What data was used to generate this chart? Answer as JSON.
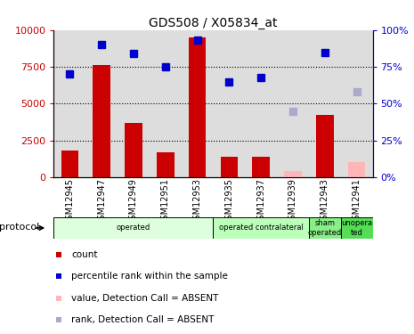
{
  "title": "GDS508 / X05834_at",
  "samples": [
    "GSM12945",
    "GSM12947",
    "GSM12949",
    "GSM12951",
    "GSM12953",
    "GSM12935",
    "GSM12937",
    "GSM12939",
    "GSM12943",
    "GSM12941"
  ],
  "counts": [
    1800,
    7600,
    3700,
    1700,
    9500,
    1400,
    1400,
    null,
    4200,
    null
  ],
  "counts_absent": [
    null,
    null,
    null,
    null,
    null,
    null,
    null,
    400,
    null,
    1000
  ],
  "ranks": [
    70,
    90,
    84,
    75,
    93,
    65,
    68,
    null,
    85,
    null
  ],
  "ranks_absent": [
    null,
    null,
    null,
    null,
    null,
    null,
    null,
    45,
    null,
    58
  ],
  "ylim_left": [
    0,
    10000
  ],
  "ylim_right": [
    0,
    100
  ],
  "yticks_left": [
    0,
    2500,
    5000,
    7500,
    10000
  ],
  "yticks_right": [
    0,
    25,
    50,
    75,
    100
  ],
  "ytick_labels_left": [
    "0",
    "2500",
    "5000",
    "7500",
    "10000"
  ],
  "ytick_labels_right": [
    "0%",
    "25%",
    "50%",
    "75%",
    "100%"
  ],
  "bar_color": "#CC0000",
  "bar_absent_color": "#FFB6B6",
  "rank_color": "#0000CC",
  "rank_absent_color": "#AAAACC",
  "protocol_groups": [
    {
      "label": "operated",
      "start": 0,
      "end": 5,
      "color": "#DDFFDD"
    },
    {
      "label": "operated contralateral",
      "start": 5,
      "end": 8,
      "color": "#BBFFBB"
    },
    {
      "label": "sham\noperated",
      "start": 8,
      "end": 9,
      "color": "#88EE88"
    },
    {
      "label": "unopera\nted",
      "start": 9,
      "end": 10,
      "color": "#55DD55"
    }
  ],
  "legend_items": [
    {
      "label": "count",
      "color": "#CC0000"
    },
    {
      "label": "percentile rank within the sample",
      "color": "#0000CC"
    },
    {
      "label": "value, Detection Call = ABSENT",
      "color": "#FFB6B6"
    },
    {
      "label": "rank, Detection Call = ABSENT",
      "color": "#AAAACC"
    }
  ],
  "col_bg": "#DDDDDD"
}
